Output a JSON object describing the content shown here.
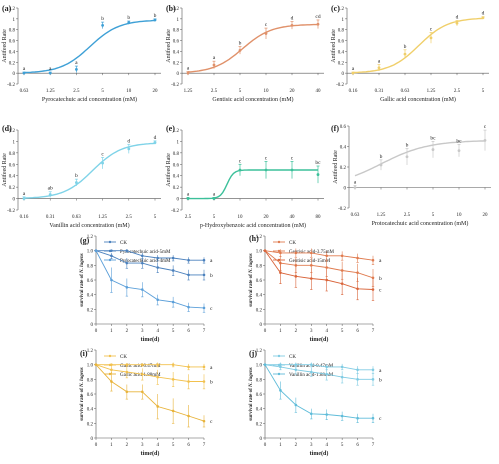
{
  "chart_data": [
    {
      "type": "line",
      "panel_label": "(a)",
      "xlabel": "Pyrocatechuic acid concentration (mM)",
      "ylabel": "Antifeed Rate",
      "ylim": [
        -0.2,
        1.2
      ],
      "yticks": [
        "-0.2",
        "0",
        "0.2",
        "0.4",
        "0.6",
        "0.8",
        "1",
        "1.2"
      ],
      "xticks": [
        "0.63",
        "1.25",
        "2.5",
        "5",
        "10",
        "20"
      ],
      "x": [
        "0.63",
        "1.25",
        "2.5",
        "5",
        "10",
        "20"
      ],
      "values": [
        0.0,
        0.0,
        0.07,
        0.88,
        0.93,
        0.98
      ],
      "errors": [
        0.02,
        0.02,
        0.06,
        0.06,
        0.03,
        0.02
      ],
      "letters": [
        "a",
        "a",
        "a",
        "b",
        "b",
        "b"
      ],
      "color": "#3ea0d6"
    },
    {
      "type": "line",
      "panel_label": "(b)",
      "xlabel": "Gentisic acid concentration (mM)",
      "ylabel": "Antifeed Rate",
      "ylim": [
        -0.2,
        1.2
      ],
      "yticks": [
        "-0.2",
        "0",
        "0.2",
        "0.4",
        "0.6",
        "0.8",
        "1",
        "1.2"
      ],
      "xticks": [
        "1.25",
        "2.5",
        "5",
        "10",
        "20",
        "40"
      ],
      "x": [
        "1.25",
        "2.5",
        "5",
        "10",
        "20",
        "40"
      ],
      "values": [
        0.0,
        0.15,
        0.42,
        0.73,
        0.88,
        0.9
      ],
      "errors": [
        0.03,
        0.07,
        0.07,
        0.1,
        0.07,
        0.08
      ],
      "letters": [
        "a",
        "a",
        "b",
        "c",
        "d",
        "cd"
      ],
      "color": "#e0916a"
    },
    {
      "type": "line",
      "panel_label": "(c)",
      "xlabel": "Gallic acid concentration (mM)",
      "ylabel": "Antifeed Rate",
      "ylim": [
        -0.2,
        1.2
      ],
      "yticks": [
        "-0.2",
        "0",
        "0.2",
        "0.4",
        "0.6",
        "0.8",
        "1",
        "1.2"
      ],
      "xticks": [
        "0.16",
        "0.31",
        "0.63",
        "1.25",
        "2.5",
        "5"
      ],
      "x": [
        "0.16",
        "0.31",
        "0.63",
        "1.25",
        "2.5",
        "5"
      ],
      "values": [
        0.0,
        0.1,
        0.35,
        0.65,
        0.92,
        1.02
      ],
      "errors": [
        0.02,
        0.06,
        0.08,
        0.1,
        0.05,
        0.02
      ],
      "letters": [
        "a",
        "a",
        "b",
        "c",
        "d",
        "d"
      ],
      "color": "#f0cf6a"
    },
    {
      "type": "line",
      "panel_label": "(d)",
      "xlabel": "Vanillin acid concentration (mM)",
      "ylabel": "Antifeed Rate",
      "ylim": [
        -0.2,
        1.2
      ],
      "yticks": [
        "-0.2",
        "0",
        "0.2",
        "0.4",
        "0.6",
        "0.8",
        "1",
        "1.2"
      ],
      "xticks": [
        "0.16",
        "0.31",
        "0.63",
        "1.25",
        "2.5",
        "5"
      ],
      "x": [
        "0.16",
        "0.31",
        "0.63",
        "1.25",
        "2.5",
        "5"
      ],
      "values": [
        0.0,
        0.07,
        0.28,
        0.62,
        0.87,
        0.98
      ],
      "errors": [
        0.03,
        0.05,
        0.06,
        0.1,
        0.08,
        0.03
      ],
      "letters": [
        "a",
        "ab",
        "b",
        "c",
        "d",
        "d"
      ],
      "color": "#7fd3e8"
    },
    {
      "type": "line",
      "panel_label": "(e)",
      "xlabel": "p-Hydroxybenzoic acid concentration (mM)",
      "ylabel": "Antifeed Rate",
      "ylim": [
        -0.2,
        1.2
      ],
      "yticks": [
        "-0.2",
        "0",
        "0.2",
        "0.4",
        "0.6",
        "0.8",
        "1",
        "1.2"
      ],
      "xticks": [
        "2.5",
        "5",
        "10",
        "20",
        "40",
        "80"
      ],
      "x": [
        "2.5",
        "5",
        "10",
        "20",
        "40",
        "80"
      ],
      "values": [
        0.0,
        0.0,
        0.5,
        0.5,
        0.5,
        0.42
      ],
      "errors": [
        0.02,
        0.02,
        0.1,
        0.15,
        0.15,
        0.15
      ],
      "letters": [
        "a",
        "a",
        "c",
        "c",
        "c",
        "bc"
      ],
      "color": "#3cc09a"
    },
    {
      "type": "line",
      "panel_label": "(f)",
      "xlabel": "Protocatechuic acid concentration (mM)",
      "ylabel": "Antifeed Rate",
      "ylim": [
        -0.2,
        0.6
      ],
      "yticks": [
        "-0.2",
        "0",
        "0.2",
        "0.4",
        "0.6"
      ],
      "xticks": [
        "0.63",
        "1.25",
        "2.5",
        "5",
        "10",
        "20"
      ],
      "x": [
        "0.63",
        "1.25",
        "2.5",
        "5",
        "10",
        "20"
      ],
      "values": [
        0.0,
        0.22,
        0.3,
        0.37,
        0.36,
        0.46
      ],
      "errors": [
        0.02,
        0.05,
        0.08,
        0.08,
        0.06,
        0.1
      ],
      "letters": [
        "a",
        "b",
        "b",
        "bc",
        "bc",
        "c"
      ],
      "color": "#c8c8c8"
    },
    {
      "type": "line",
      "panel_label": "(g)",
      "xlabel": "time(d)",
      "ylabel_prefix": "survival rate of ",
      "ylabel_italic": "N. lugens",
      "ylim": [
        0,
        1.2
      ],
      "yticks": [
        "0",
        "0.2",
        "0.4",
        "0.6",
        "0.8",
        "1.0",
        "1.2"
      ],
      "xticks": [
        "0",
        "1",
        "2",
        "3",
        "4",
        "5",
        "6",
        "7"
      ],
      "x": [
        0,
        1,
        2,
        3,
        4,
        5,
        6,
        7
      ],
      "series": [
        {
          "name": "CK",
          "values": [
            1.0,
            1.0,
            1.0,
            0.93,
            0.9,
            0.9,
            0.87,
            0.87
          ],
          "errors": [
            0,
            0,
            0.02,
            0.04,
            0.04,
            0.04,
            0.04,
            0.04
          ],
          "letter": "a",
          "color": "#4a80bd"
        },
        {
          "name": "Pyrocatechuic acid-5mM",
          "values": [
            1.0,
            0.93,
            0.83,
            0.83,
            0.77,
            0.73,
            0.67,
            0.67
          ],
          "errors": [
            0,
            0.04,
            0.07,
            0.07,
            0.07,
            0.07,
            0.07,
            0.07
          ],
          "letter": "b",
          "color": "#4a80bd"
        },
        {
          "name": "Pyrocatechuic acid-4mM",
          "values": [
            1.0,
            0.6,
            0.5,
            0.47,
            0.33,
            0.3,
            0.23,
            0.22
          ],
          "errors": [
            0,
            0.17,
            0.12,
            0.1,
            0.07,
            0.07,
            0.06,
            0.06
          ],
          "letter": "c",
          "color": "#5b9fd9"
        }
      ]
    },
    {
      "type": "line",
      "panel_label": "(h)",
      "xlabel": "time(d)",
      "ylabel_prefix": "survival rate of ",
      "ylabel_italic": "N. lugens",
      "ylim": [
        0,
        1.2
      ],
      "yticks": [
        "0",
        "0.2",
        "0.4",
        "0.6",
        "0.8",
        "1.0",
        "1.2"
      ],
      "xticks": [
        "0",
        "1",
        "2",
        "3",
        "4",
        "5",
        "6",
        "7"
      ],
      "x": [
        0,
        1,
        2,
        3,
        4,
        5,
        6,
        7
      ],
      "series": [
        {
          "name": "CK",
          "values": [
            1.0,
            0.97,
            0.97,
            0.97,
            0.93,
            0.93,
            0.9,
            0.87
          ],
          "errors": [
            0,
            0.05,
            0.06,
            0.06,
            0.06,
            0.06,
            0.06,
            0.06
          ],
          "letter": "a",
          "color": "#e07b4f"
        },
        {
          "name": "Gentisic acid-3.75mM",
          "values": [
            1.0,
            0.83,
            0.8,
            0.8,
            0.77,
            0.73,
            0.7,
            0.63
          ],
          "errors": [
            0,
            0.1,
            0.1,
            0.1,
            0.12,
            0.12,
            0.12,
            0.12
          ],
          "letter": "b",
          "color": "#e07b4f"
        },
        {
          "name": "Gentisic acid-15mM",
          "values": [
            1.0,
            0.7,
            0.65,
            0.62,
            0.6,
            0.55,
            0.48,
            0.47
          ],
          "errors": [
            0,
            0.15,
            0.15,
            0.15,
            0.15,
            0.15,
            0.15,
            0.15
          ],
          "letter": "c",
          "color": "#d9643a"
        }
      ]
    },
    {
      "type": "line",
      "panel_label": "(i)",
      "xlabel": "time(d)",
      "ylabel_prefix": "survival rate of ",
      "ylabel_italic": "N. lugens",
      "ylim": [
        0,
        1.2
      ],
      "yticks": [
        "0",
        "0.2",
        "0.4",
        "0.6",
        "0.8",
        "1.0",
        "1.2"
      ],
      "xticks": [
        "0",
        "1",
        "2",
        "3",
        "4",
        "5",
        "6",
        "7"
      ],
      "x": [
        0,
        1,
        2,
        3,
        4,
        5,
        6,
        7
      ],
      "series": [
        {
          "name": "CK",
          "values": [
            1.0,
            1.0,
            1.0,
            1.0,
            1.0,
            1.0,
            0.97,
            0.97
          ],
          "errors": [
            0,
            0,
            0.02,
            0.02,
            0.03,
            0.03,
            0.04,
            0.04
          ],
          "letter": "a",
          "color": "#f2c14e"
        },
        {
          "name": "Gallic acid-0.47mM",
          "values": [
            1.0,
            0.93,
            0.9,
            0.87,
            0.83,
            0.8,
            0.77,
            0.77
          ],
          "errors": [
            0,
            0.06,
            0.08,
            0.08,
            0.1,
            0.1,
            0.1,
            0.1
          ],
          "letter": "b",
          "color": "#f2c14e"
        },
        {
          "name": "Gallic acid-1.88mM",
          "values": [
            1.0,
            0.77,
            0.63,
            0.63,
            0.43,
            0.37,
            0.3,
            0.23
          ],
          "errors": [
            0,
            0.13,
            0.1,
            0.1,
            0.17,
            0.17,
            0.15,
            0.08
          ],
          "letter": "c",
          "color": "#e8b33a"
        }
      ]
    },
    {
      "type": "line",
      "panel_label": "(j)",
      "xlabel": "time(d)",
      "ylabel_prefix": "survival rate of ",
      "ylabel_italic": "N. lugens",
      "ylim": [
        0,
        1.2
      ],
      "yticks": [
        "0",
        "0.2",
        "0.4",
        "0.6",
        "0.8",
        "1.0",
        "1.2"
      ],
      "xticks": [
        "0",
        "1",
        "2",
        "3",
        "4",
        "5",
        "6",
        "7"
      ],
      "x": [
        0,
        1,
        2,
        3,
        4,
        5,
        6,
        7
      ],
      "series": [
        {
          "name": "CK",
          "values": [
            1.0,
            1.0,
            1.0,
            1.0,
            0.97,
            0.97,
            0.93,
            0.93
          ],
          "errors": [
            0,
            0.03,
            0.03,
            0.03,
            0.04,
            0.04,
            0.05,
            0.05
          ],
          "letter": "a",
          "color": "#7fcbe3"
        },
        {
          "name": "Vanillin acid-0.47mM",
          "values": [
            1.0,
            0.97,
            0.93,
            0.9,
            0.87,
            0.83,
            0.8,
            0.8
          ],
          "errors": [
            0,
            0.04,
            0.06,
            0.06,
            0.08,
            0.08,
            0.08,
            0.08
          ],
          "letter": "b",
          "color": "#7fcbe3"
        },
        {
          "name": "Vanillin acid-1.88mM",
          "values": [
            1.0,
            0.65,
            0.45,
            0.33,
            0.32,
            0.3,
            0.27,
            0.27
          ],
          "errors": [
            0,
            0.12,
            0.1,
            0.07,
            0.07,
            0.06,
            0.06,
            0.06
          ],
          "letter": "c",
          "color": "#5fbcd9"
        }
      ]
    }
  ]
}
